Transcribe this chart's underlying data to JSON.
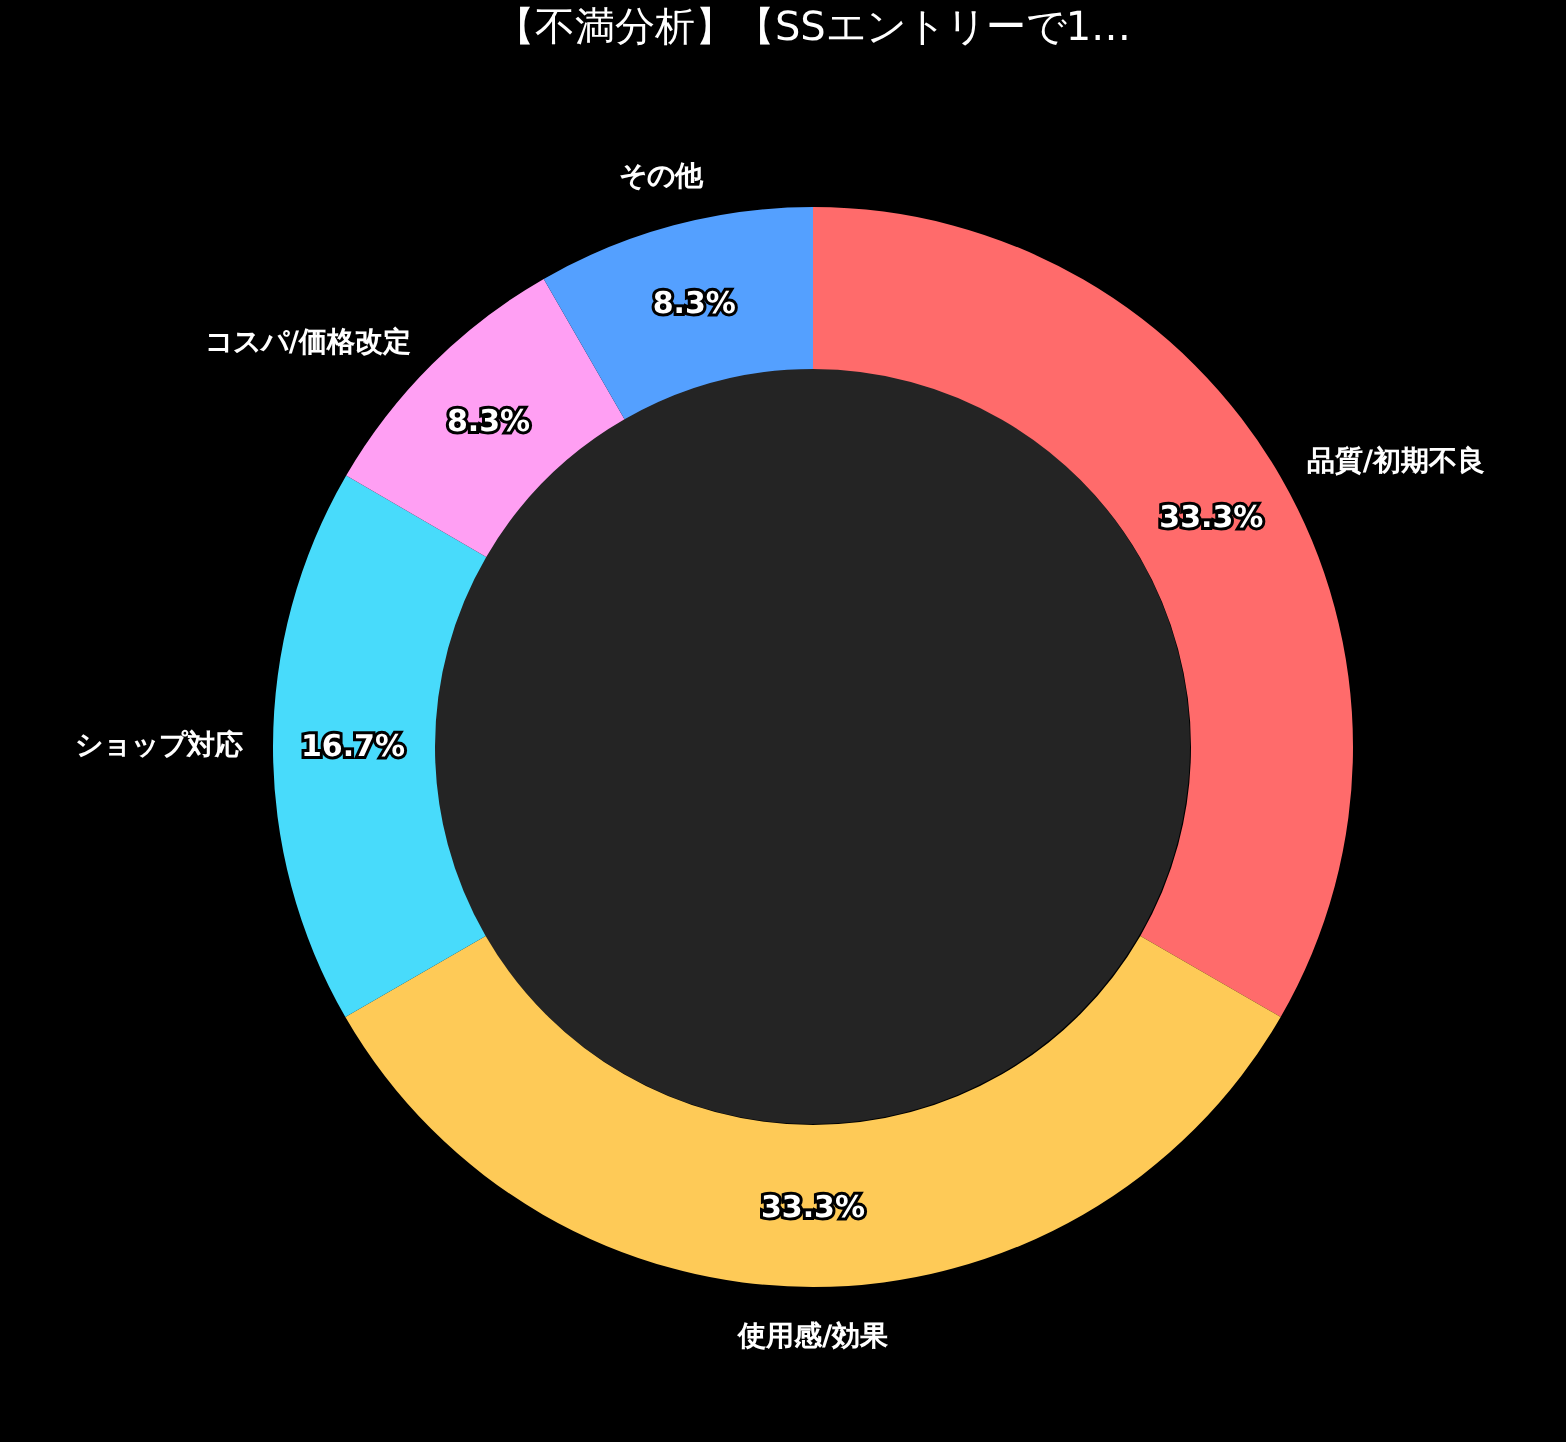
{
  "chart_data": {
    "type": "donut",
    "title": "【不満分析】【SSエントリーで1…",
    "categories": [
      "品質/初期不良",
      "使用感/効果",
      "ショップ対応",
      "コスパ/価格改定",
      "その他"
    ],
    "values": [
      33.3,
      33.3,
      16.7,
      8.3,
      8.3
    ],
    "colors": [
      "#ff6b6b",
      "#feca57",
      "#48dbfb",
      "#ff9ff3",
      "#54a0ff"
    ],
    "value_labels": [
      "33.3%",
      "33.3%",
      "16.7%",
      "8.3%",
      "8.3%"
    ],
    "legend": false
  }
}
